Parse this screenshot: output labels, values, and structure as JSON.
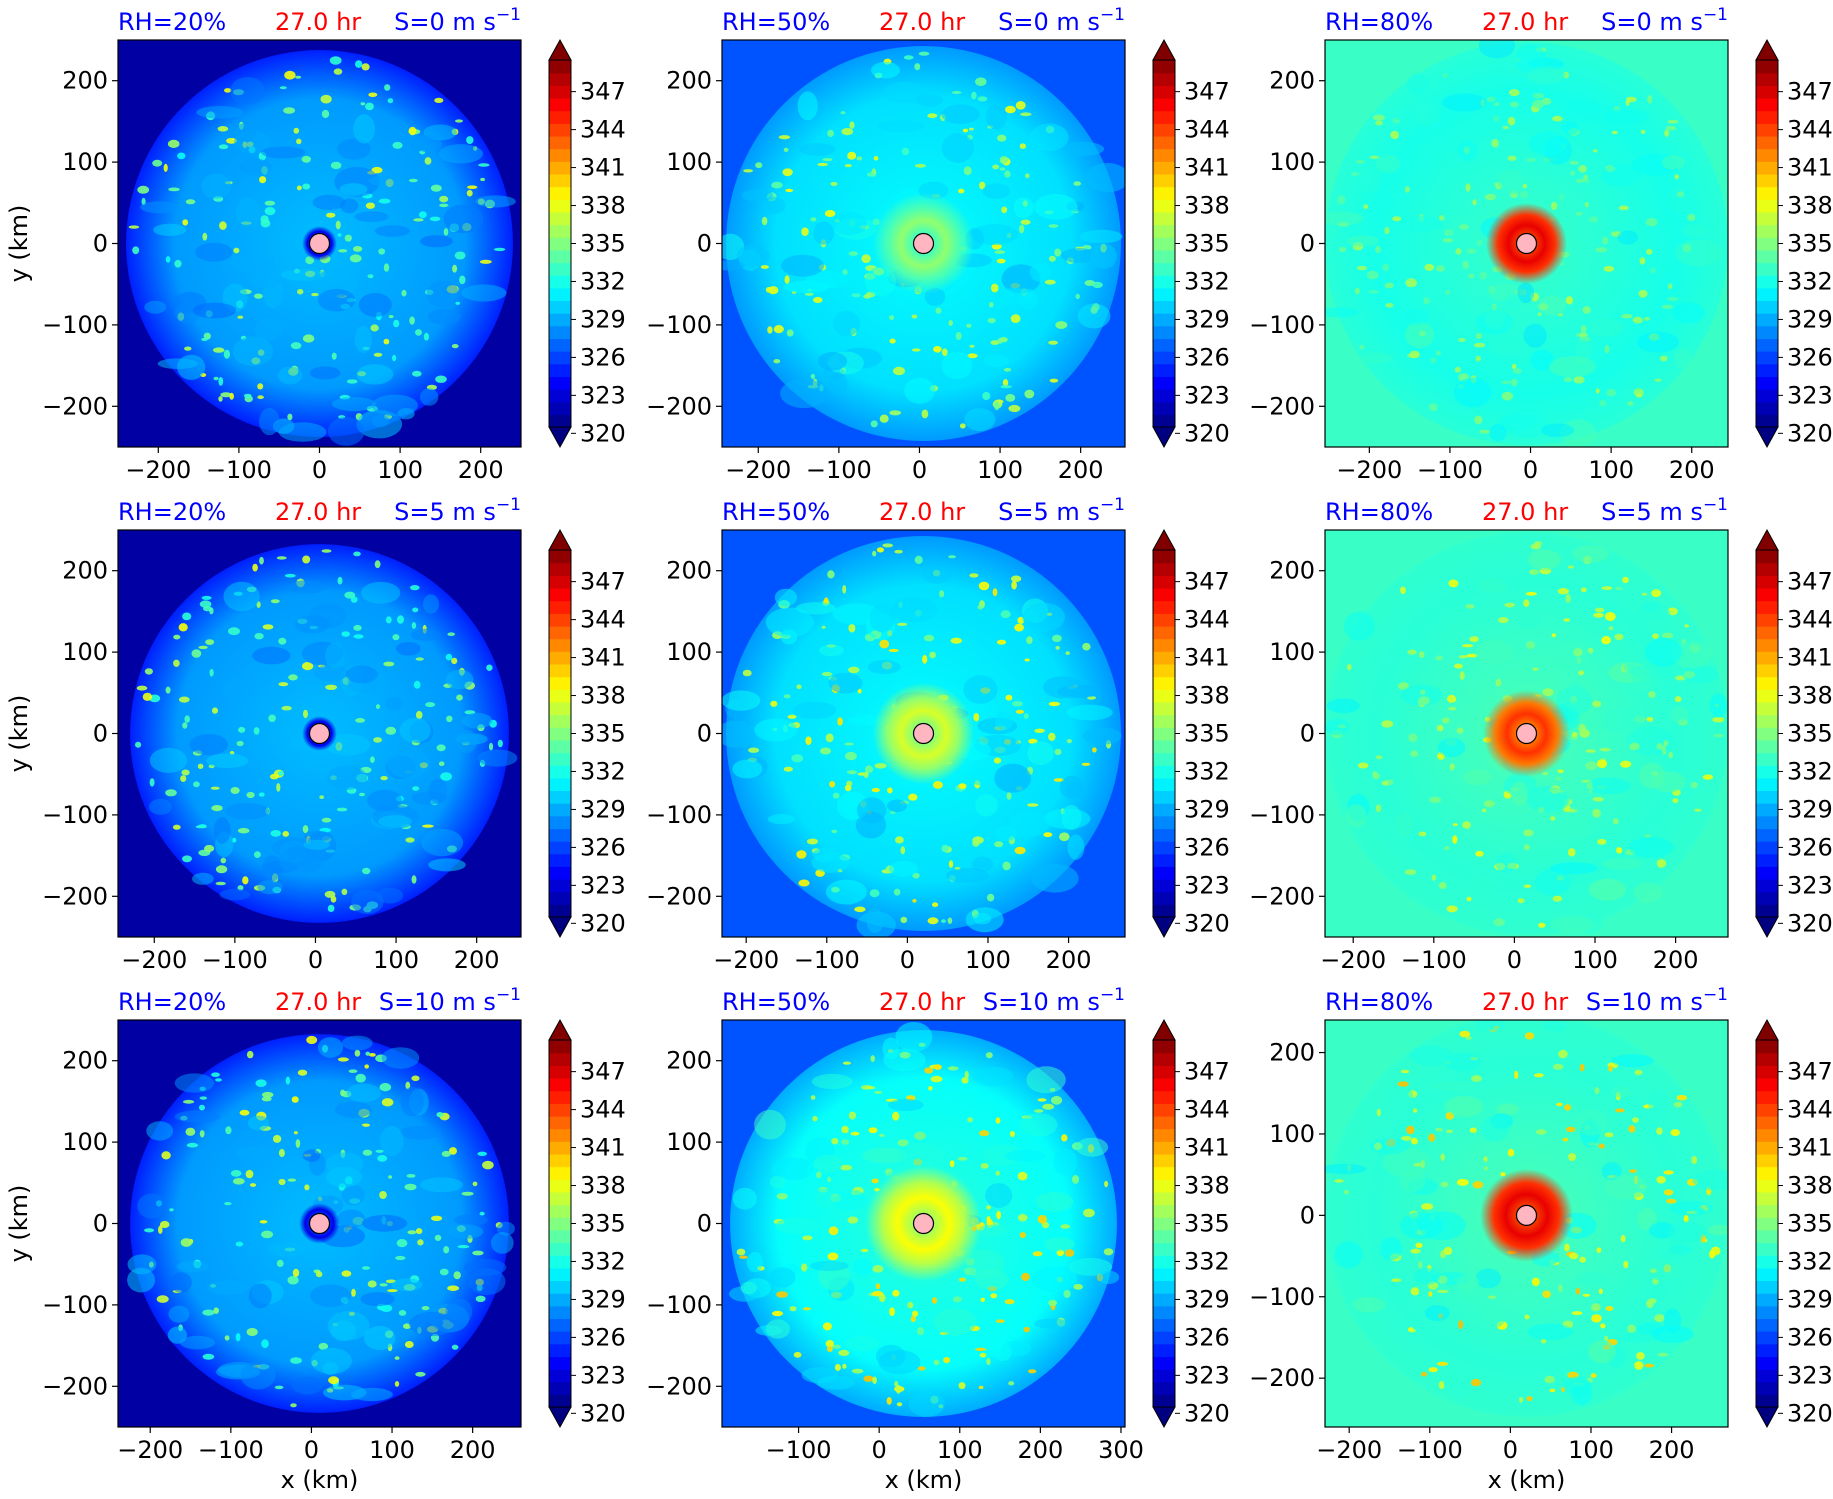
{
  "chart_data": {
    "type": "heatmap",
    "layout": "3x3 grid of panels",
    "colorbar": {
      "colormap": "jet",
      "ticks": [
        "320",
        "323",
        "326",
        "329",
        "332",
        "335",
        "338",
        "341",
        "344",
        "347"
      ],
      "range": [
        320,
        349
      ],
      "extend": "both"
    },
    "panels": [
      {
        "rh_label": "RH=20%",
        "time_label": "27.0 hr",
        "shear_label": "S=0 m s",
        "shear_exp": "−1",
        "xlim": [
          -250,
          250
        ],
        "ylim": [
          -250,
          250
        ],
        "xticks": [
          -200,
          -100,
          0,
          100,
          200
        ],
        "yticks": [
          -200,
          -100,
          0,
          100,
          200
        ],
        "xtick_labels": [
          "−200",
          "−100",
          "0",
          "100",
          "200"
        ],
        "ytick_labels": [
          "−200",
          "−100",
          "0",
          "100",
          "200"
        ],
        "ylabel": "y (km)",
        "xlabel": "",
        "background_value": 321,
        "field_value": 328,
        "disk_radius": 240,
        "center": [
          0,
          0
        ],
        "core_value": 323,
        "core_radius": 12,
        "spot_max": 338
      },
      {
        "rh_label": "RH=50%",
        "time_label": "27.0 hr",
        "shear_label": "S=0 m s",
        "shear_exp": "−1",
        "xlim": [
          -245,
          255
        ],
        "ylim": [
          -250,
          250
        ],
        "xticks": [
          -200,
          -100,
          0,
          100,
          200
        ],
        "yticks": [
          -200,
          -100,
          0,
          100,
          200
        ],
        "xtick_labels": [
          "−200",
          "−100",
          "0",
          "100",
          "200"
        ],
        "ytick_labels": [
          "−200",
          "−100",
          "0",
          "100",
          "200"
        ],
        "ylabel": "",
        "xlabel": "",
        "background_value": 326,
        "field_value": 330,
        "disk_radius": 245,
        "center": [
          5,
          0
        ],
        "core_value": 333,
        "core_radius": 35,
        "spot_max": 338
      },
      {
        "rh_label": "RH=80%",
        "time_label": "27.0 hr",
        "shear_label": "S=0 m s",
        "shear_exp": "−1",
        "xlim": [
          -255,
          245
        ],
        "ylim": [
          -250,
          250
        ],
        "xticks": [
          -200,
          -100,
          0,
          100,
          200
        ],
        "yticks": [
          -200,
          -100,
          0,
          100,
          200
        ],
        "xtick_labels": [
          "−200",
          "−100",
          "0",
          "100",
          "200"
        ],
        "ytick_labels": [
          "−200",
          "−100",
          "0",
          "100",
          "200"
        ],
        "ylabel": "",
        "xlabel": "",
        "background_value": 332.5,
        "field_value": 331.5,
        "disk_radius": 250,
        "center": [
          -5,
          0
        ],
        "core_value": 344,
        "core_radius": 28,
        "spot_max": 336
      },
      {
        "rh_label": "RH=20%",
        "time_label": "27.0 hr",
        "shear_label": "S=5 m s",
        "shear_exp": "−1",
        "xlim": [
          -245,
          255
        ],
        "ylim": [
          -250,
          250
        ],
        "xticks": [
          -200,
          -100,
          0,
          100,
          200
        ],
        "yticks": [
          -200,
          -100,
          0,
          100,
          200
        ],
        "xtick_labels": [
          "−200",
          "−100",
          "0",
          "100",
          "200"
        ],
        "ytick_labels": [
          "−200",
          "−100",
          "0",
          "100",
          "200"
        ],
        "ylabel": "y (km)",
        "xlabel": "",
        "background_value": 321,
        "field_value": 328,
        "disk_radius": 235,
        "center": [
          5,
          0
        ],
        "core_value": 323,
        "core_radius": 12,
        "spot_max": 338
      },
      {
        "rh_label": "RH=50%",
        "time_label": "27.0 hr",
        "shear_label": "S=5 m s",
        "shear_exp": "−1",
        "xlim": [
          -230,
          270
        ],
        "ylim": [
          -250,
          250
        ],
        "xticks": [
          -200,
          -100,
          0,
          100,
          200
        ],
        "yticks": [
          -200,
          -100,
          0,
          100,
          200
        ],
        "xtick_labels": [
          "−200",
          "−100",
          "0",
          "100",
          "200"
        ],
        "ytick_labels": [
          "−200",
          "−100",
          "0",
          "100",
          "200"
        ],
        "ylabel": "",
        "xlabel": "",
        "background_value": 326,
        "field_value": 330,
        "disk_radius": 245,
        "center": [
          20,
          0
        ],
        "core_value": 335,
        "core_radius": 35,
        "spot_max": 339
      },
      {
        "rh_label": "RH=80%",
        "time_label": "27.0 hr",
        "shear_label": "S=5 m s",
        "shear_exp": "−1",
        "xlim": [
          -235,
          265
        ],
        "ylim": [
          -250,
          250
        ],
        "xticks": [
          -200,
          -100,
          0,
          100,
          200
        ],
        "yticks": [
          -200,
          -100,
          0,
          100,
          200
        ],
        "xtick_labels": [
          "−200",
          "−100",
          "0",
          "100",
          "200"
        ],
        "ytick_labels": [
          "−200",
          "−100",
          "0",
          "100",
          "200"
        ],
        "ylabel": "",
        "xlabel": "",
        "background_value": 332.5,
        "field_value": 332,
        "disk_radius": 250,
        "center": [
          15,
          0
        ],
        "core_value": 342,
        "core_radius": 30,
        "spot_max": 338
      },
      {
        "rh_label": "RH=20%",
        "time_label": "27.0 hr",
        "shear_label": "S=10 m s",
        "shear_exp": "−1",
        "xlim": [
          -240,
          260
        ],
        "ylim": [
          -250,
          250
        ],
        "xticks": [
          -200,
          -100,
          0,
          100,
          200
        ],
        "yticks": [
          -200,
          -100,
          0,
          100,
          200
        ],
        "xtick_labels": [
          "−200",
          "−100",
          "0",
          "100",
          "200"
        ],
        "ytick_labels": [
          "−200",
          "−100",
          "0",
          "100",
          "200"
        ],
        "ylabel": "y (km)",
        "xlabel": "x (km)",
        "background_value": 321,
        "field_value": 328,
        "disk_radius": 235,
        "center": [
          10,
          0
        ],
        "core_value": 323,
        "core_radius": 14,
        "spot_max": 338
      },
      {
        "rh_label": "RH=50%",
        "time_label": "27.0 hr",
        "shear_label": "S=10 m s",
        "shear_exp": "−1",
        "xlim": [
          -195,
          305
        ],
        "ylim": [
          -250,
          250
        ],
        "xticks": [
          -100,
          0,
          100,
          200,
          300
        ],
        "yticks": [
          -200,
          -100,
          0,
          100,
          200
        ],
        "xtick_labels": [
          "−100",
          "0",
          "100",
          "200",
          "300"
        ],
        "ytick_labels": [
          "−200",
          "−100",
          "0",
          "100",
          "200"
        ],
        "ylabel": "",
        "xlabel": "x (km)",
        "background_value": 326,
        "field_value": 331,
        "disk_radius": 240,
        "center": [
          55,
          0
        ],
        "core_value": 336,
        "core_radius": 40,
        "spot_max": 340
      },
      {
        "rh_label": "RH=80%",
        "time_label": "27.0 hr",
        "shear_label": "S=10 m s",
        "shear_exp": "−1",
        "xlim": [
          -230,
          270
        ],
        "ylim": [
          -260,
          240
        ],
        "xticks": [
          -200,
          -100,
          0,
          100,
          200
        ],
        "yticks": [
          -200,
          -100,
          0,
          100,
          200
        ],
        "xtick_labels": [
          "−200",
          "−100",
          "0",
          "100",
          "200"
        ],
        "ytick_labels": [
          "−200",
          "−100",
          "0",
          "100",
          "200"
        ],
        "ylabel": "",
        "xlabel": "x (km)",
        "background_value": 332.5,
        "field_value": 332,
        "disk_radius": 250,
        "center": [
          20,
          0
        ],
        "core_value": 344,
        "core_radius": 32,
        "spot_max": 340
      }
    ]
  },
  "colors": {
    "rh_label": "#0000ff",
    "time_label": "#ff0000",
    "shear_label": "#0000ff",
    "center_marker_fill": "#ffb6c1",
    "axis": "#000000"
  }
}
